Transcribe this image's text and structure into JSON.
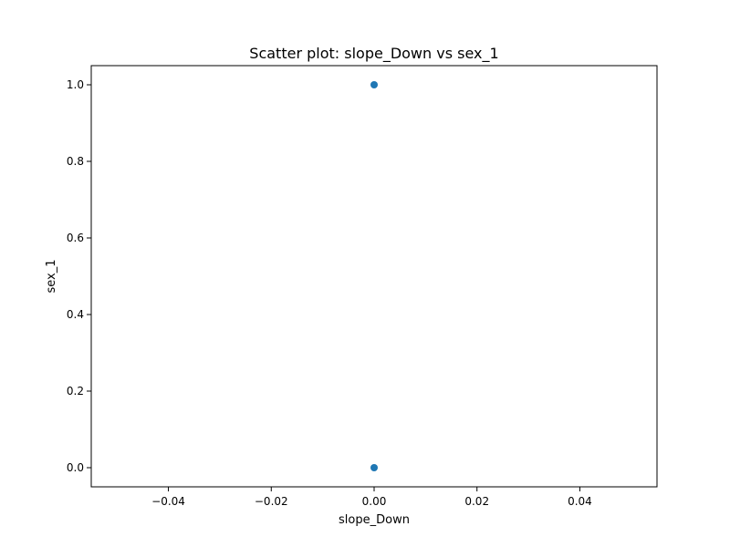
{
  "chart_data": {
    "type": "scatter",
    "title": "Scatter plot: slope_Down vs sex_1",
    "xlabel": "slope_Down",
    "ylabel": "sex_1",
    "xlim": [
      -0.055,
      0.055
    ],
    "ylim": [
      -0.05,
      1.05
    ],
    "x_ticks": [
      -0.04,
      -0.02,
      0.0,
      0.02,
      0.04
    ],
    "x_tick_labels": [
      "−0.04",
      "−0.02",
      "0.00",
      "0.02",
      "0.04"
    ],
    "y_ticks": [
      0.0,
      0.2,
      0.4,
      0.6,
      0.8,
      1.0
    ],
    "y_tick_labels": [
      "0.0",
      "0.2",
      "0.4",
      "0.6",
      "0.8",
      "1.0"
    ],
    "grid": false,
    "series": [
      {
        "color": "#1f77b4",
        "points": [
          {
            "x": 0.0,
            "y": 1.0
          },
          {
            "x": 0.0,
            "y": 0.0
          }
        ]
      }
    ]
  }
}
